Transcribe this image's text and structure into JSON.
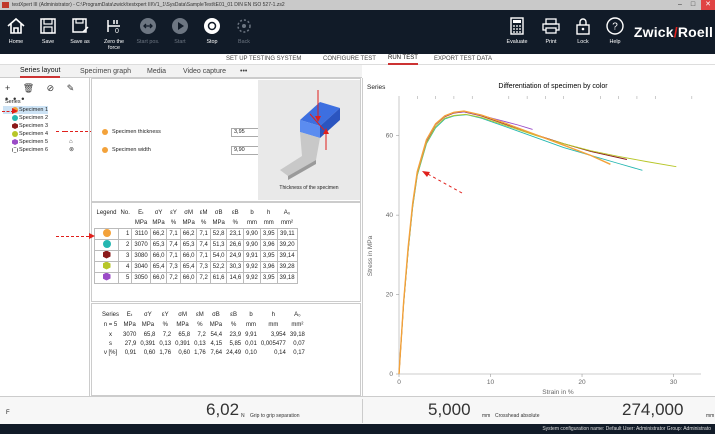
{
  "window": {
    "title": "testXpert III (Administrator) - C:\\ProgramData\\zwick\\testxpert III\\V1_1\\SysData\\SampleTest\\tE01_01 DIN EN ISO 527-1.zs2",
    "minimize": "–",
    "maximize": "□",
    "close": "✕"
  },
  "ribbon": {
    "buttons": [
      {
        "label": "Home",
        "icon": "home-icon"
      },
      {
        "label": "Save",
        "icon": "save-icon"
      },
      {
        "label": "Save as",
        "icon": "save-as-icon"
      },
      {
        "label": "Zero the force",
        "icon": "zero-force-icon"
      },
      {
        "label": "Start pos.",
        "icon": "start-position-icon"
      },
      {
        "label": "Start",
        "icon": "play-icon"
      },
      {
        "label": "Stop",
        "icon": "stop-icon"
      },
      {
        "label": "Back",
        "icon": "back-icon"
      },
      {
        "label": "Evaluate",
        "icon": "calculator-icon"
      },
      {
        "label": "Print",
        "icon": "printer-icon"
      },
      {
        "label": "Lock",
        "icon": "lock-icon"
      },
      {
        "label": "Help",
        "icon": "help-icon"
      }
    ],
    "logo_left": "Zwick",
    "logo_slash": "/",
    "logo_right": "Roell"
  },
  "modes": [
    "SET UP TESTING SYSTEM",
    "CONFIGURE TEST",
    "RUN TEST",
    "EXPORT TEST DATA"
  ],
  "active_mode": "RUN TEST",
  "subtabs": [
    "Series layout",
    "Specimen graph",
    "Media",
    "Video capture",
    "•••"
  ],
  "tree": {
    "toolbar": "+ 🗑 ⊘ ✎ •••",
    "root": "Series",
    "specimens": [
      {
        "label": "Specimen 1",
        "color": "#f3a23a",
        "shape": "dot"
      },
      {
        "label": "Specimen 2",
        "color": "#25b7b1",
        "shape": "dot"
      },
      {
        "label": "Specimen 3",
        "color": "#8b1a1a",
        "shape": "hex"
      },
      {
        "label": "Specimen 4",
        "color": "#b7c628",
        "shape": "dot"
      },
      {
        "label": "Specimen 5",
        "color": "#9b4cc7",
        "shape": "hex"
      },
      {
        "label": "Specimen 6",
        "color": "#ffffff",
        "shape": "hex"
      }
    ],
    "icon5": "⌂",
    "icon6": "⊗"
  },
  "params": [
    {
      "label": "Specimen thickness",
      "value": "3,95",
      "unit": "mm"
    },
    {
      "label": "Specimen width",
      "value": "9,90",
      "unit": "mm"
    }
  ],
  "image_caption": "Thickness of the specimen",
  "results": {
    "headers": [
      "Legend",
      "No.",
      "Eₜ",
      "σY",
      "εY",
      "σM",
      "εM",
      "σB",
      "εB",
      "b",
      "h",
      "A₀"
    ],
    "units": [
      "",
      "",
      "MPa",
      "MPa",
      "%",
      "MPa",
      "%",
      "MPa",
      "%",
      "mm",
      "mm",
      "mm²"
    ],
    "rows": [
      {
        "color": "#f3a23a",
        "shape": "dot",
        "cells": [
          "1",
          "3110",
          "66,2",
          "7,1",
          "66,2",
          "7,1",
          "52,8",
          "23,1",
          "9,90",
          "3,95",
          "39,11"
        ]
      },
      {
        "color": "#25b7b1",
        "shape": "dot",
        "cells": [
          "2",
          "3070",
          "65,3",
          "7,4",
          "65,3",
          "7,4",
          "51,3",
          "26,6",
          "9,90",
          "3,96",
          "39,20"
        ]
      },
      {
        "color": "#8b1a1a",
        "shape": "hex",
        "cells": [
          "3",
          "3080",
          "66,0",
          "7,1",
          "66,0",
          "7,1",
          "54,0",
          "24,9",
          "9,91",
          "3,95",
          "39,14"
        ]
      },
      {
        "color": "#b7c628",
        "shape": "hex",
        "cells": [
          "4",
          "3040",
          "65,4",
          "7,3",
          "65,4",
          "7,3",
          "52,2",
          "30,3",
          "9,92",
          "3,96",
          "39,28"
        ]
      },
      {
        "color": "#9b4cc7",
        "shape": "hex",
        "cells": [
          "5",
          "3050",
          "66,0",
          "7,2",
          "66,0",
          "7,2",
          "61,6",
          "14,6",
          "9,92",
          "3,95",
          "39,18"
        ]
      }
    ]
  },
  "stats": {
    "headers": [
      "Series",
      "Eₜ",
      "σY",
      "εY",
      "σM",
      "εM",
      "σB",
      "εB",
      "b",
      "h",
      "A₀"
    ],
    "units": [
      "n = 5",
      "MPa",
      "MPa",
      "%",
      "MPa",
      "%",
      "MPa",
      "%",
      "mm",
      "mm",
      "mm²"
    ],
    "rows": [
      [
        "x",
        "3070",
        "65,8",
        "7,2",
        "65,8",
        "7,2",
        "54,4",
        "23,9",
        "9,91",
        "3,954",
        "39,18"
      ],
      [
        "s",
        "27,9",
        "0,391",
        "0,13",
        "0,391",
        "0,13",
        "4,15",
        "5,85",
        "0,01",
        "0,005477",
        "0,07"
      ],
      [
        "ν [%]",
        "0,91",
        "0,60",
        "1,76",
        "0,60",
        "1,76",
        "7,64",
        "24,49",
        "0,10",
        "0,14",
        "0,17"
      ]
    ]
  },
  "graph": {
    "panel_label": "Series"
  },
  "chart_data": {
    "type": "line",
    "title": "Differentiation of specimen by color",
    "xlabel": "Strain in %",
    "ylabel": "Stress in MPa",
    "xlim": [
      0,
      33
    ],
    "ylim": [
      0,
      70
    ],
    "xticks": [
      0,
      10,
      20,
      30
    ],
    "yticks": [
      0,
      20,
      40,
      60
    ],
    "grid": false,
    "series": [
      {
        "color": "#f3a23a",
        "x": [
          0,
          0.5,
          1,
          1.5,
          2,
          3,
          4,
          5,
          6,
          7.1,
          9,
          12,
          15,
          18,
          21,
          23.1
        ],
        "y": [
          0,
          18,
          32,
          43,
          51,
          59,
          63,
          65,
          65.9,
          66.2,
          65.2,
          62.8,
          60.2,
          57.6,
          55,
          52.8
        ]
      },
      {
        "color": "#25b7b1",
        "x": [
          0,
          0.5,
          1,
          1.5,
          2,
          3,
          4,
          5,
          6,
          7.4,
          9,
          12,
          15,
          18,
          21,
          24,
          26.6
        ],
        "y": [
          0,
          17.5,
          31,
          42,
          50,
          58,
          62,
          64.2,
          65,
          65.3,
          64.4,
          62,
          59.5,
          57,
          55,
          53,
          51.3
        ]
      },
      {
        "color": "#8b1a1a",
        "x": [
          0,
          0.5,
          1,
          1.5,
          2,
          3,
          4,
          5,
          6,
          7.1,
          9,
          12,
          15,
          18,
          21,
          24.9
        ],
        "y": [
          0,
          17.8,
          31.5,
          42.5,
          50.5,
          58.5,
          62.8,
          64.8,
          65.7,
          66,
          65,
          62.6,
          60.2,
          58,
          56,
          54
        ]
      },
      {
        "color": "#b7c628",
        "x": [
          0,
          0.5,
          1,
          1.5,
          2,
          3,
          4,
          5,
          6,
          7.3,
          9,
          12,
          15,
          18,
          21,
          24,
          27,
          30.3
        ],
        "y": [
          0,
          17.6,
          31.2,
          42.2,
          50.2,
          58.2,
          62.3,
          64.4,
          65.1,
          65.4,
          64.6,
          62.3,
          60,
          58,
          56.2,
          54.8,
          53.5,
          52.2
        ]
      },
      {
        "color": "#9b4cc7",
        "x": [
          0,
          0.5,
          1,
          1.5,
          2,
          3,
          4,
          5,
          6,
          7.2,
          9,
          11,
          13,
          14.6
        ],
        "y": [
          0,
          17.9,
          31.7,
          42.7,
          50.7,
          58.7,
          62.9,
          64.9,
          65.8,
          66,
          65.1,
          63.9,
          62.7,
          61.6
        ]
      }
    ]
  },
  "status": {
    "force_label": "F",
    "force_value": "6,02",
    "force_unit": "N",
    "force_desc": "Grip to grip separation",
    "sep_value": "5,000",
    "sep_unit": "mm",
    "sep_desc": "Crosshead absolute",
    "abs_value": "274,000",
    "abs_unit": "mm"
  },
  "footer": "System configuration name: Default   User: Administrator   Group: Administrato"
}
